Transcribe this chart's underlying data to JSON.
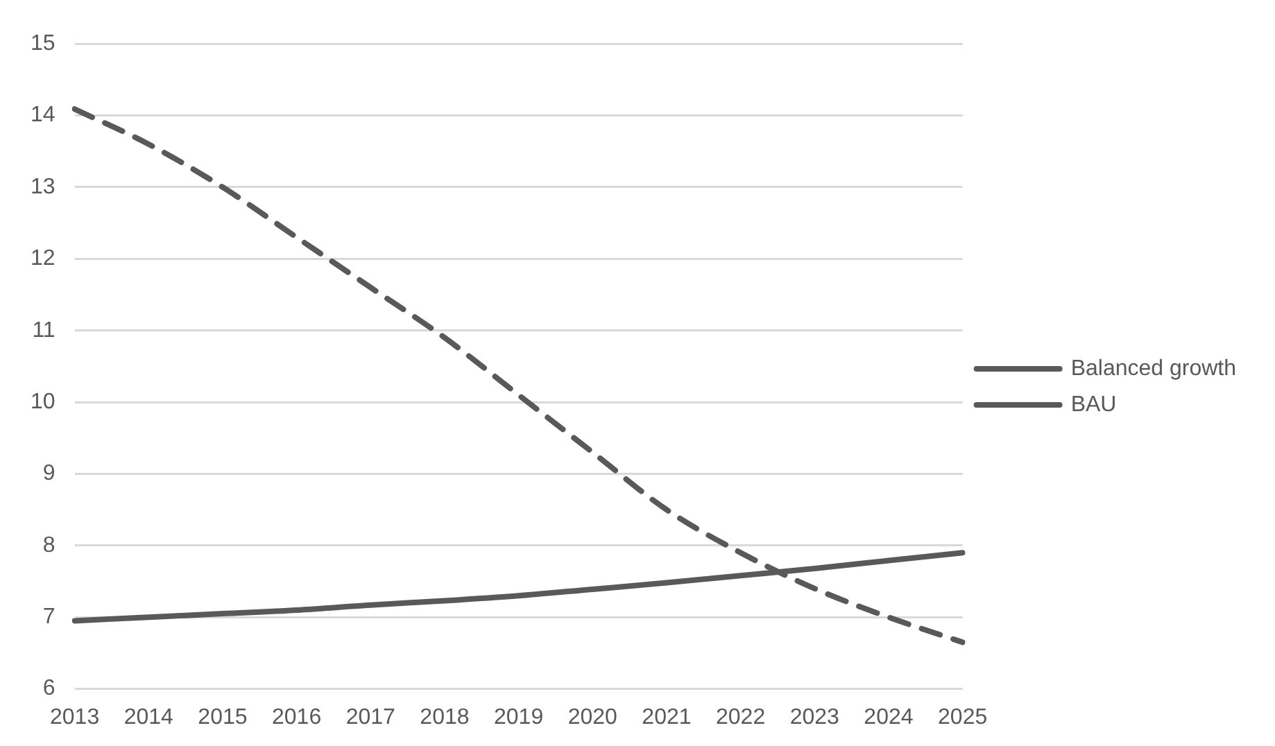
{
  "chart_data": {
    "type": "line",
    "categories": [
      "2013",
      "2014",
      "2015",
      "2016",
      "2017",
      "2018",
      "2019",
      "2020",
      "2021",
      "2022",
      "2023",
      "2024",
      "2025"
    ],
    "series": [
      {
        "name": "Balanced growth",
        "color": "#595959",
        "line_style": "solid",
        "values": [
          6.95,
          7.0,
          7.05,
          7.1,
          7.17,
          7.23,
          7.3,
          7.39,
          7.48,
          7.58,
          7.68,
          7.79,
          7.9
        ]
      },
      {
        "name": "BAU",
        "color": "#595959",
        "line_style": "dashed",
        "values": [
          14.09,
          13.6,
          13.0,
          12.3,
          11.6,
          10.9,
          10.1,
          9.3,
          8.5,
          7.9,
          7.4,
          7.0,
          6.65
        ]
      }
    ],
    "ylim": [
      6,
      15
    ],
    "yticks": [
      6,
      7,
      8,
      9,
      10,
      11,
      12,
      13,
      14,
      15
    ],
    "grid": "y",
    "legend": "right",
    "marker": "none"
  }
}
